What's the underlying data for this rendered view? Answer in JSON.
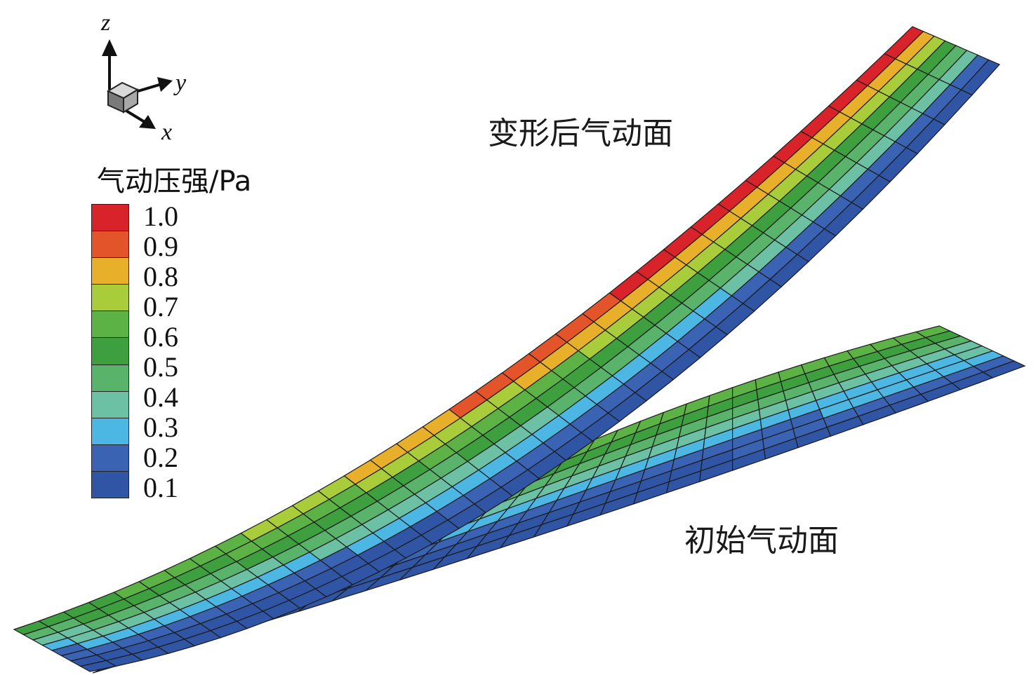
{
  "labels": {
    "deformed": "变形后气动面",
    "initial": "初始气动面"
  },
  "axes": {
    "z": "z",
    "y": "y",
    "x": "x"
  },
  "legend": {
    "title": "气动压强/Pa",
    "ticks": [
      "1.0",
      "0.9",
      "0.8",
      "0.7",
      "0.6",
      "0.5",
      "0.4",
      "0.3",
      "0.2",
      "0.1"
    ],
    "colors": [
      "#d8232a",
      "#e3542b",
      "#e8b02a",
      "#a9cc3a",
      "#5cb244",
      "#3e9f3f",
      "#59b36b",
      "#6cc1a5",
      "#4db7e4",
      "#3a64b3",
      "#2f55a4"
    ]
  }
}
